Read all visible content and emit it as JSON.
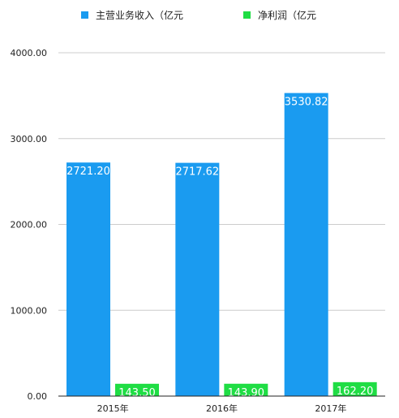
{
  "chart_data": {
    "type": "bar",
    "categories": [
      "2015年",
      "2016年",
      "2017年"
    ],
    "series": [
      {
        "name": "主营业务收入（亿元",
        "color": "#1a9bf0",
        "values": [
          2721.2,
          2717.62,
          3530.82
        ],
        "labels": [
          "2721.20",
          "2717.62",
          "3530.82"
        ]
      },
      {
        "name": "净利润（亿元",
        "color": "#1fdd44",
        "values": [
          143.5,
          143.9,
          162.2
        ],
        "labels": [
          "143.50",
          "143.90",
          "162.20"
        ]
      }
    ],
    "ylim": [
      0,
      4000
    ],
    "yticks": [
      "0.00",
      "1000.00",
      "2000.00",
      "3000.00",
      "4000.00"
    ],
    "grid": true,
    "legend": "top",
    "gridline_color": "#cccccc",
    "axis_color": "#222222"
  }
}
